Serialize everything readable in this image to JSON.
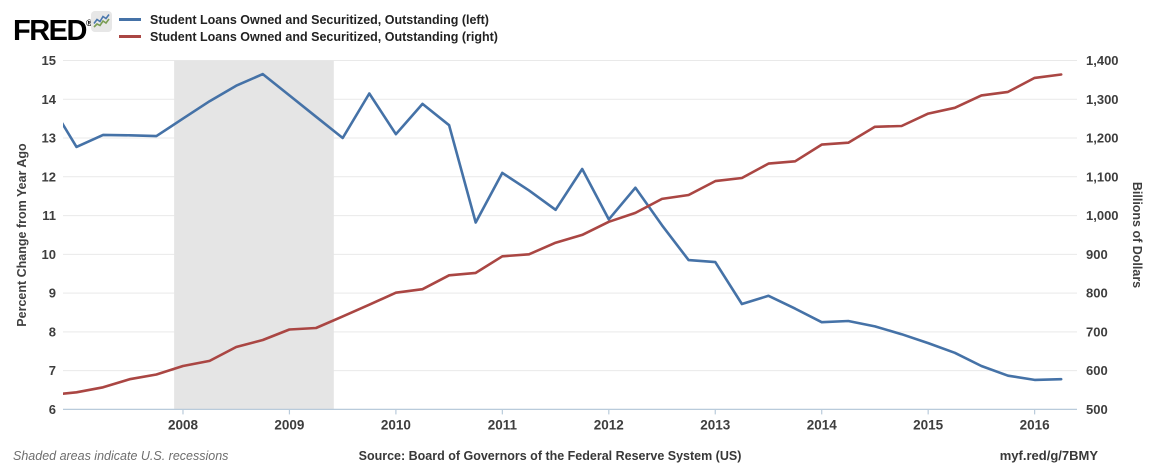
{
  "header": {
    "logo_text": "FRED",
    "registered_mark": "®",
    "legend": [
      {
        "label": "Student Loans Owned and Securitized, Outstanding (left)",
        "color": "#4572a7"
      },
      {
        "label": "Student Loans Owned and Securitized, Outstanding (right)",
        "color": "#aa4643"
      }
    ]
  },
  "footer": {
    "recession_note": "Shaded areas indicate U.S. recessions",
    "source": "Source: Board of Governors of the Federal Reserve System (US)",
    "short_link": "myf.red/g/7BMY"
  },
  "chart_data": {
    "type": "line",
    "x_range": [
      2006.873,
      2016.398
    ],
    "x_ticks": [
      2008,
      2009,
      2010,
      2011,
      2012,
      2013,
      2014,
      2015,
      2016
    ],
    "left_axis": {
      "title": "Percent Change from Year Ago",
      "range": [
        6,
        15
      ],
      "ticks": [
        6,
        7,
        8,
        9,
        10,
        11,
        12,
        13,
        14,
        15
      ]
    },
    "right_axis": {
      "title": "Billions of Dollars",
      "range": [
        500,
        1400
      ],
      "tick_values": [
        500,
        600,
        700,
        800,
        900,
        1000,
        1100,
        1200,
        1300,
        1400
      ],
      "tick_labels": [
        "500",
        "600",
        "700",
        "800",
        "900",
        "1,000",
        "1,100",
        "1,200",
        "1,300",
        "1,400"
      ]
    },
    "recession_band": {
      "start": 2007.917,
      "end": 2009.417,
      "note": "U.S. recession Dec 2007 - Jun 2009"
    },
    "x": [
      2006.75,
      2007.0,
      2007.25,
      2007.5,
      2007.75,
      2008.0,
      2008.25,
      2008.5,
      2008.75,
      2009.0,
      2009.25,
      2009.5,
      2009.75,
      2010.0,
      2010.25,
      2010.5,
      2010.75,
      2011.0,
      2011.25,
      2011.5,
      2011.75,
      2012.0,
      2012.25,
      2012.5,
      2012.75,
      2013.0,
      2013.25,
      2013.5,
      2013.75,
      2014.0,
      2014.25,
      2014.5,
      2014.75,
      2015.0,
      2015.25,
      2015.5,
      2015.75,
      2016.0,
      2016.25
    ],
    "series": [
      {
        "name": "Student Loans Owned and Securitized, Outstanding (left)",
        "axis": "left",
        "units": "Percent Change from Year Ago",
        "color": "#4572a7",
        "values": [
          13.9,
          12.77,
          13.08,
          13.07,
          13.05,
          13.5,
          13.95,
          14.35,
          14.65,
          14.1,
          13.55,
          13.0,
          14.15,
          13.1,
          13.88,
          13.33,
          10.82,
          12.1,
          11.65,
          11.15,
          12.2,
          10.9,
          11.72,
          10.75,
          9.85,
          9.8,
          8.72,
          8.93,
          8.6,
          8.25,
          8.28,
          8.14,
          7.94,
          7.71,
          7.46,
          7.12,
          6.87,
          6.76,
          6.78
        ]
      },
      {
        "name": "Student Loans Owned and Securitized, Outstanding (right)",
        "axis": "right",
        "units": "Billions of Dollars",
        "color": "#aa4643",
        "values": [
          537,
          544,
          557,
          578,
          590,
          612,
          625,
          661,
          679,
          706,
          710,
          740,
          770,
          801,
          810,
          846,
          852,
          895,
          900,
          930,
          950,
          984,
          1007,
          1043,
          1053,
          1089,
          1097,
          1134,
          1140,
          1183,
          1188,
          1229,
          1231,
          1263,
          1278,
          1310,
          1319,
          1355,
          1364
        ]
      }
    ],
    "colors": {
      "recession": "#e5e5e5",
      "gridline": "#e9e9e9",
      "axis_line": "#b9cbdb",
      "tick_text": "#3e3e3e"
    }
  }
}
